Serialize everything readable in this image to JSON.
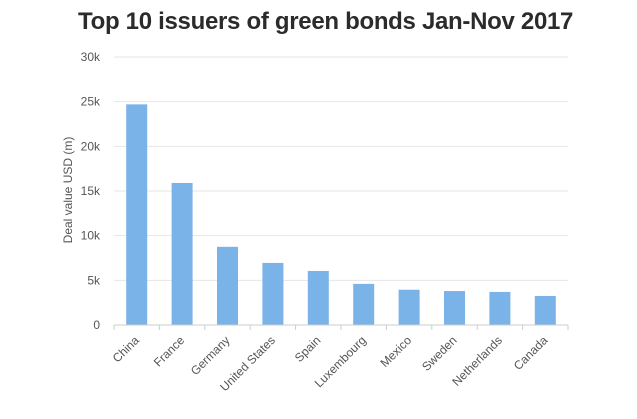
{
  "chart_data": {
    "type": "bar",
    "title": "Top 10 issuers of green bonds Jan-Nov 2017",
    "xlabel": "",
    "ylabel": "Deal value USD (m)",
    "categories": [
      "China",
      "France",
      "Germany",
      "United States",
      "Spain",
      "Luxembourg",
      "Mexico",
      "Sweden",
      "Netherlands",
      "Canada"
    ],
    "values": [
      24700,
      15900,
      8750,
      6950,
      6050,
      4600,
      3950,
      3800,
      3700,
      3250
    ],
    "ylim": [
      0,
      30000
    ],
    "yticks": [
      0,
      5000,
      10000,
      15000,
      20000,
      25000,
      30000
    ],
    "ytick_labels": [
      "0",
      "5k",
      "10k",
      "15k",
      "20k",
      "25k",
      "30k"
    ],
    "grid": true,
    "bar_color": "#7ab3e8",
    "grid_color": "#e6e6e6",
    "axis_color": "#cccccc"
  }
}
